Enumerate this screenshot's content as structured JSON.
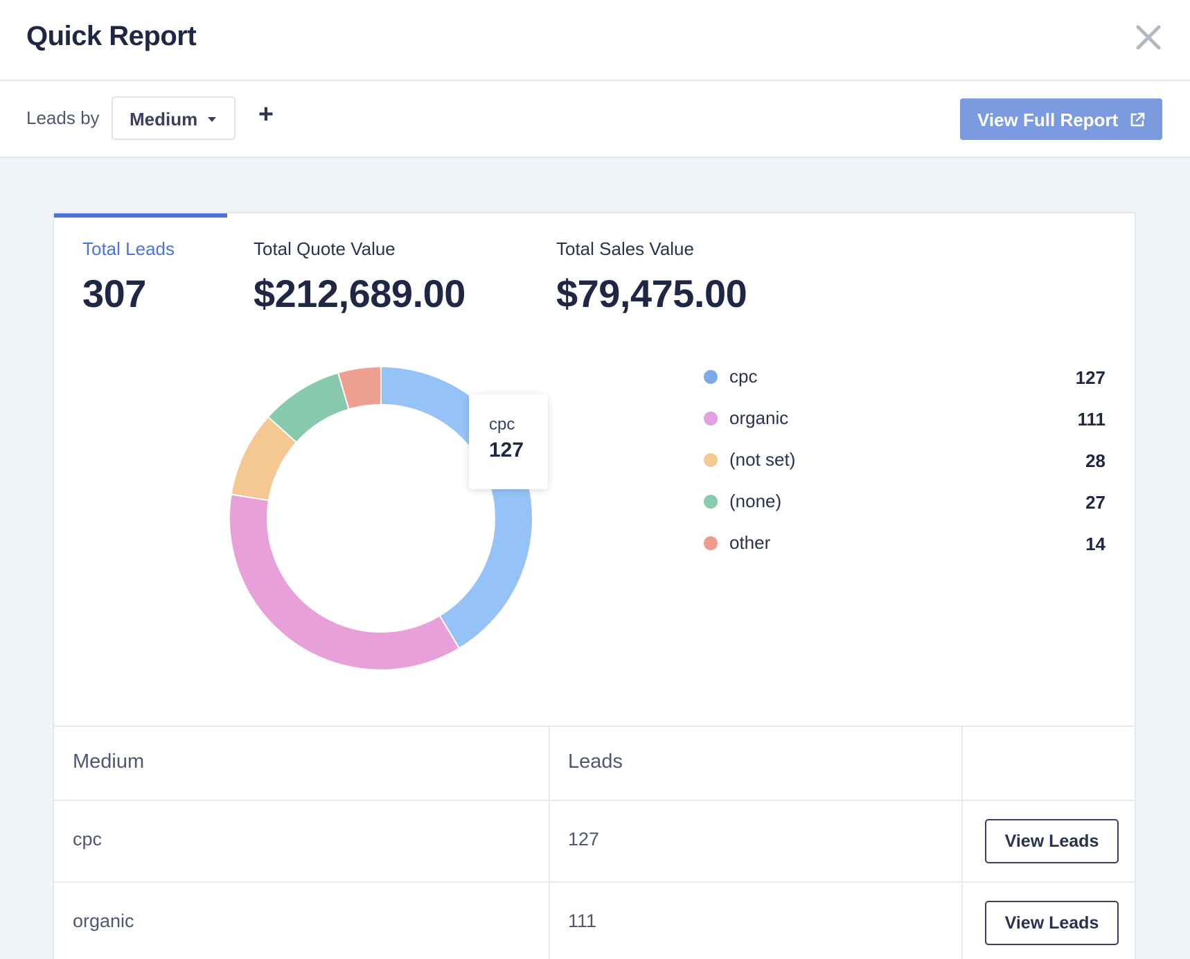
{
  "header": {
    "title": "Quick Report"
  },
  "toolbar": {
    "leads_by_label": "Leads by",
    "dropdown_value": "Medium",
    "add_label": "+",
    "view_full_report_label": "View Full Report"
  },
  "metrics": [
    {
      "label": "Total Leads",
      "value": "307",
      "active": true
    },
    {
      "label": "Total Quote Value",
      "value": "$212,689.00",
      "active": false
    },
    {
      "label": "Total Sales Value",
      "value": "$79,475.00",
      "active": false
    }
  ],
  "chart_data": {
    "type": "pie",
    "donut": true,
    "categories": [
      "cpc",
      "organic",
      "(not set)",
      "(none)",
      "other"
    ],
    "values": [
      127,
      111,
      28,
      27,
      14
    ],
    "colors": [
      "#96c3f7",
      "#e8a1d8",
      "#f3c891",
      "#86c9ac",
      "#eda090"
    ],
    "legend_colors": [
      "#7ea8ea",
      "#e2a0e0",
      "#f2c98f",
      "#86ccad",
      "#ee9c8e"
    ],
    "tooltip": {
      "label": "cpc",
      "value": "127"
    },
    "legend_position": "right"
  },
  "table": {
    "columns": [
      "Medium",
      "Leads",
      ""
    ],
    "rows": [
      {
        "medium": "cpc",
        "leads": "127",
        "action": "View Leads"
      },
      {
        "medium": "organic",
        "leads": "111",
        "action": "View Leads"
      }
    ]
  },
  "icons": {
    "close": "close-icon",
    "dropdown": "caret-down-icon",
    "external": "external-link-icon"
  }
}
